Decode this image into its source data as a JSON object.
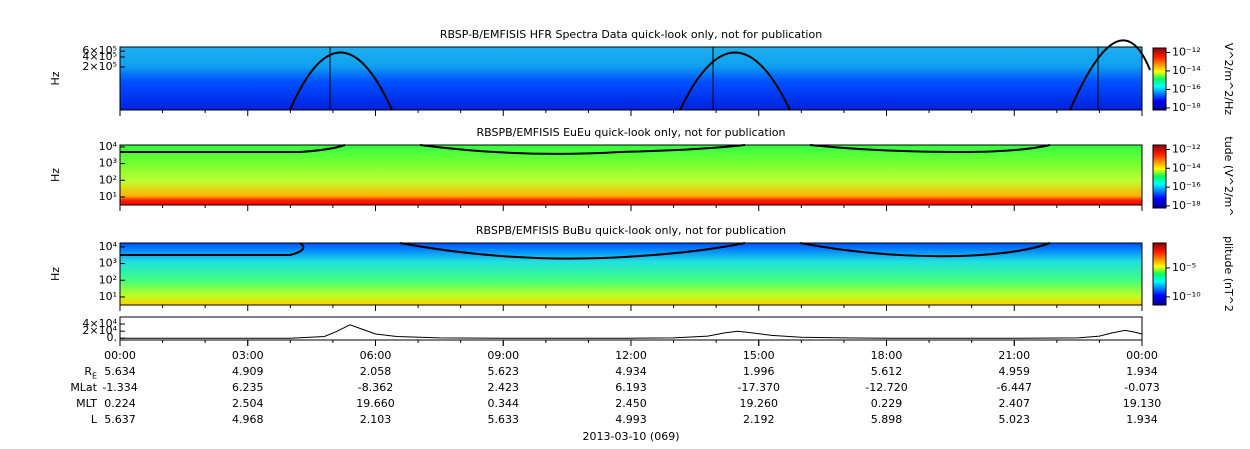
{
  "chart_data": [
    {
      "type": "spectrogram",
      "title": "RBSP-B/EMFISIS  HFR Spectra Data quick-look only, not for publication",
      "ylabel": "Hz",
      "log_y": true,
      "ylim": [
        10000,
        800000
      ],
      "yticks": [
        {
          "value": 200000,
          "label": "2×10⁵"
        },
        {
          "value": 400000,
          "label": "4×10⁵"
        },
        {
          "value": 600000,
          "label": "6×10⁵"
        }
      ],
      "colorbar": {
        "label": "V^2/m^2/Hz",
        "log": true,
        "clim": [
          6e-19,
          3e-12
        ],
        "ticks": [
          {
            "value": 1e-12,
            "label": "10⁻¹²"
          },
          {
            "value": 1e-14,
            "label": "10⁻¹⁴"
          },
          {
            "value": 1e-16,
            "label": "10⁻¹⁶"
          },
          {
            "value": 1e-18,
            "label": "10⁻¹⁸"
          }
        ]
      }
    },
    {
      "type": "spectrogram",
      "title": "RBSPB/EMFISIS  EuEu quick-look only, not for publication",
      "ylabel": "Hz",
      "log_y": true,
      "ylim": [
        3.3,
        13000
      ],
      "yticks": [
        {
          "value": 10,
          "label": "10¹"
        },
        {
          "value": 100,
          "label": "10²"
        },
        {
          "value": 1000,
          "label": "10³"
        },
        {
          "value": 10000,
          "label": "10⁴"
        }
      ],
      "colorbar": {
        "label": "tude (V^2/m^",
        "log": true,
        "clim": [
          6e-19,
          3e-12
        ],
        "ticks": [
          {
            "value": 1e-12,
            "label": "10⁻¹²"
          },
          {
            "value": 1e-14,
            "label": "10⁻¹⁴"
          },
          {
            "value": 1e-16,
            "label": "10⁻¹⁶"
          },
          {
            "value": 1e-18,
            "label": "10⁻¹⁸"
          }
        ]
      }
    },
    {
      "type": "spectrogram",
      "title": "RBSPB/EMFISIS  BuBu quick-look only, not for publication",
      "ylabel": "Hz",
      "log_y": true,
      "ylim": [
        3.3,
        17000
      ],
      "yticks": [
        {
          "value": 10,
          "label": "10¹"
        },
        {
          "value": 100,
          "label": "10²"
        },
        {
          "value": 1000,
          "label": "10³"
        },
        {
          "value": 10000,
          "label": "10⁴"
        }
      ],
      "colorbar": {
        "label": "plitude (nT^2",
        "log": true,
        "clim": [
          4e-12,
          0.2
        ],
        "ticks": [
          {
            "value": 1e-05,
            "label": "10⁻⁵"
          },
          {
            "value": 1e-10,
            "label": "10⁻¹⁰"
          }
        ]
      }
    },
    {
      "type": "line",
      "log_y": false,
      "ylim": [
        -5000,
        60000
      ],
      "yticks": [
        {
          "value": 0,
          "label": "0."
        },
        {
          "value": 20000,
          "label": "2×10⁴"
        },
        {
          "value": 40000,
          "label": "4×10⁴"
        }
      ],
      "color": "#000000",
      "x": [
        0,
        4,
        4.8,
        5.1,
        5.4,
        5.7,
        6,
        6.5,
        7.5,
        9,
        12,
        13,
        13.8,
        14.2,
        14.5,
        14.8,
        15.3,
        16,
        17,
        18,
        21,
        22.5,
        23,
        23.3,
        23.6,
        23.8,
        24
      ],
      "values": [
        0,
        0,
        5000,
        20000,
        38000,
        25000,
        12000,
        5000,
        1000,
        0,
        0,
        1000,
        6000,
        15000,
        20000,
        16000,
        8000,
        3000,
        1000,
        0,
        0,
        1000,
        6000,
        15000,
        22000,
        18000,
        12000
      ]
    }
  ],
  "time_axis": {
    "xlim": [
      0,
      24
    ],
    "xticks": [
      {
        "value": 0,
        "label": "00:00"
      },
      {
        "value": 3,
        "label": "03:00"
      },
      {
        "value": 6,
        "label": "06:00"
      },
      {
        "value": 9,
        "label": "09:00"
      },
      {
        "value": 12,
        "label": "12:00"
      },
      {
        "value": 15,
        "label": "15:00"
      },
      {
        "value": 18,
        "label": "18:00"
      },
      {
        "value": 21,
        "label": "21:00"
      },
      {
        "value": 24,
        "label": "00:00"
      }
    ]
  },
  "ephemeris": {
    "rows": [
      {
        "label": "R",
        "sub": "E",
        "values": [
          "5.634",
          "4.909",
          "2.058",
          "5.623",
          "4.934",
          "1.996",
          "5.612",
          "4.959",
          "1.934"
        ]
      },
      {
        "label": "MLat",
        "values": [
          "-1.334",
          "6.235",
          "-8.362",
          "2.423",
          "6.193",
          "-17.370",
          "-12.720",
          "-6.447",
          "-0.073"
        ]
      },
      {
        "label": "MLT",
        "values": [
          "0.224",
          "2.504",
          "19.660",
          "0.344",
          "2.450",
          "19.260",
          "0.229",
          "2.407",
          "19.130"
        ]
      },
      {
        "label": "L",
        "values": [
          "5.637",
          "4.968",
          "2.103",
          "5.633",
          "4.993",
          "2.192",
          "5.898",
          "5.023",
          "1.934"
        ]
      }
    ]
  },
  "date": "2013-03-10 (069)"
}
